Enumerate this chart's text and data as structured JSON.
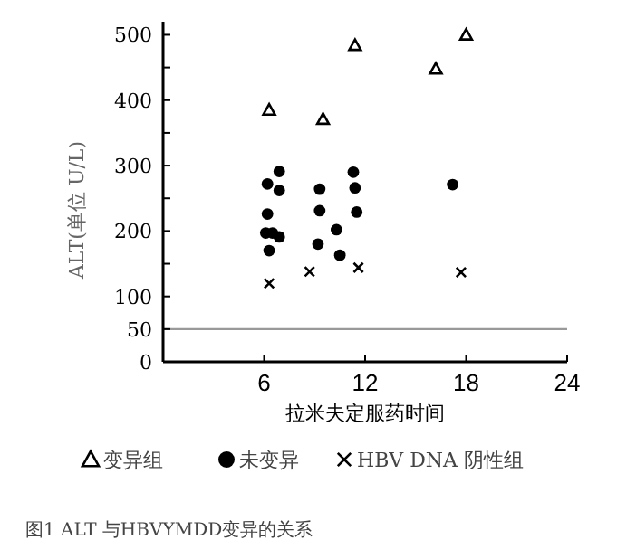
{
  "chart_data": {
    "type": "scatter",
    "xlabel": "拉米夫定服药时间",
    "ylabel": "ALT(单位  U/L)",
    "xlim": [
      0,
      24
    ],
    "xticks": [
      6,
      12,
      18,
      24
    ],
    "ylim": [
      0,
      520
    ],
    "yticks": [
      0,
      50,
      100,
      {
        "value": 150,
        "label": null
      },
      200,
      {
        "value": 250,
        "label": null
      },
      300,
      {
        "value": 350,
        "label": null
      },
      400,
      {
        "value": 450,
        "label": null
      },
      500
    ],
    "legend": "bottom",
    "ref_lines": [
      {
        "axis": "y",
        "value": 50,
        "color": "#999999"
      }
    ],
    "annotations": [
      "图1  ALT 与HBVYMDD变异的关系"
    ],
    "series": [
      {
        "name": "变异组",
        "color": "#000000",
        "marker": "triangle",
        "x": [
          6.3,
          9.5,
          11.4,
          16.2,
          18
        ],
        "values": [
          385,
          371,
          484,
          448,
          500
        ]
      },
      {
        "name": "未变异",
        "color": "#000000",
        "marker": "circle",
        "x": [
          6.2,
          6.2,
          6.9,
          6.9,
          6.1,
          6.5,
          6.9,
          6.3,
          9.3,
          9.3,
          9.2,
          10.3,
          10.5,
          11.3,
          11.4,
          11.5,
          17.2
        ],
        "values": [
          226,
          272,
          291,
          262,
          197,
          197,
          191,
          170,
          264,
          231,
          180,
          202,
          163,
          290,
          266,
          229,
          271
        ]
      },
      {
        "name": "HBV DNA 阴性组",
        "color": "#000000",
        "marker": "cross",
        "x": [
          6.3,
          8.7,
          11.6,
          17.7
        ],
        "values": [
          120,
          138,
          144,
          137
        ]
      }
    ]
  }
}
